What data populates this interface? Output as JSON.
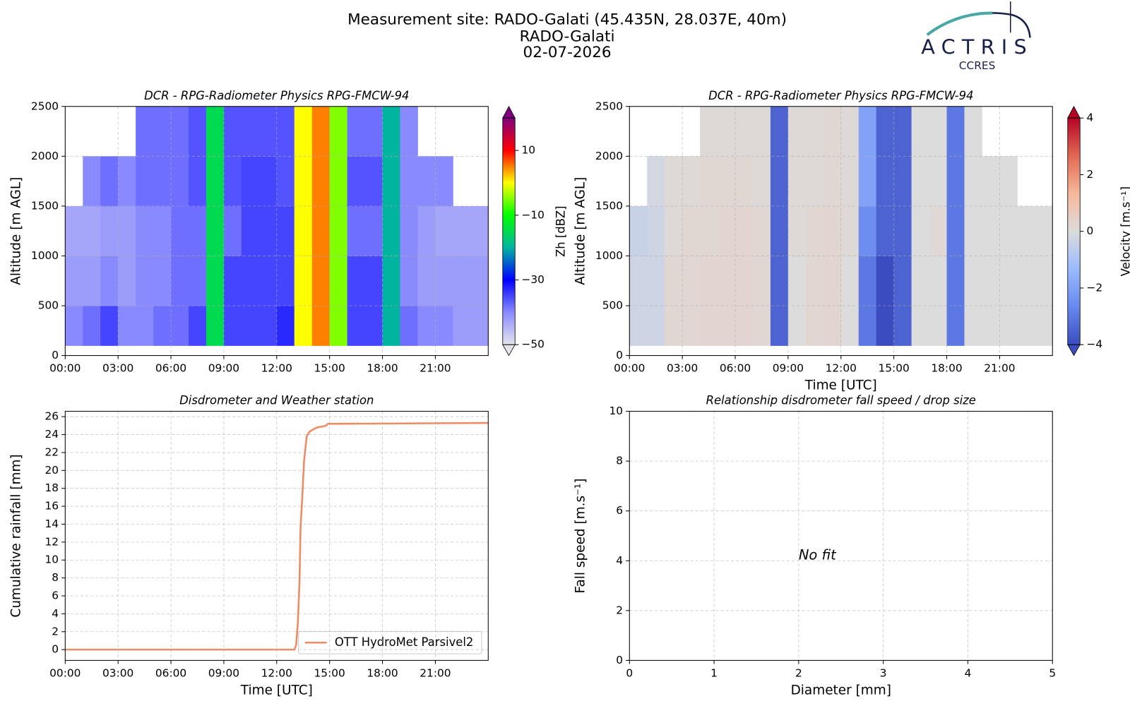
{
  "title_lines": [
    "Measurement site: RADO-Galati (45.435N, 28.037E, 40m)",
    "RADO-Galati",
    "02-07-2026"
  ],
  "logo": {
    "name": "ACTRIS",
    "subtitle": "CCRES"
  },
  "chart_data": [
    {
      "type": "heatmap",
      "title": "DCR - RPG-Radiometer Physics RPG-FMCW-94",
      "ylabel": "Altitude [m AGL]",
      "colorbar_label": "Zh [dBZ]",
      "xlim": [
        0,
        24
      ],
      "xticks": [
        {
          "value": 0,
          "label": "00:00"
        },
        {
          "value": 3,
          "label": "03:00"
        },
        {
          "value": 6,
          "label": "06:00"
        },
        {
          "value": 9,
          "label": "09:00"
        },
        {
          "value": 12,
          "label": "12:00"
        },
        {
          "value": 15,
          "label": "15:00"
        },
        {
          "value": 18,
          "label": "18:00"
        },
        {
          "value": 21,
          "label": "21:00"
        }
      ],
      "ylim": [
        0,
        2500
      ],
      "yticks": [
        0,
        500,
        1000,
        1500,
        2000,
        2500
      ],
      "grid": true,
      "x_bins": [
        0,
        1,
        2,
        3,
        4,
        5,
        6,
        7,
        8,
        9,
        10,
        11,
        12,
        13,
        14,
        15,
        16,
        17,
        18,
        19,
        20,
        21,
        22,
        23,
        24
      ],
      "y_bins": [
        100,
        500,
        1000,
        1500,
        2000,
        2500
      ],
      "z": [
        [
          -40,
          -38,
          -35,
          -40,
          -40,
          -38,
          -38,
          -35,
          -15,
          -35,
          -35,
          -35,
          -33,
          0,
          5,
          -5,
          -35,
          -35,
          -20,
          -38,
          -40,
          -40,
          -42,
          -42
        ],
        [
          -42,
          -42,
          -40,
          -42,
          -40,
          -40,
          -38,
          -38,
          -15,
          -35,
          -35,
          -35,
          -35,
          0,
          5,
          -5,
          -35,
          -35,
          -20,
          -40,
          -42,
          -42,
          -42,
          -42
        ],
        [
          -43,
          -43,
          -42,
          -42,
          -40,
          -40,
          -38,
          -38,
          -15,
          -38,
          -35,
          -35,
          -35,
          0,
          5,
          -5,
          -38,
          -38,
          -20,
          -40,
          -42,
          -43,
          -43,
          -43
        ],
        [
          null,
          -40,
          -38,
          -40,
          -38,
          -38,
          -38,
          -36,
          -15,
          -36,
          -35,
          -35,
          -36,
          0,
          5,
          -5,
          -36,
          -36,
          -20,
          -40,
          -40,
          -40,
          null,
          null
        ],
        [
          null,
          null,
          null,
          null,
          -38,
          -38,
          -38,
          -36,
          -15,
          -36,
          -36,
          -36,
          -36,
          0,
          5,
          -5,
          -38,
          -38,
          -20,
          -40,
          null,
          null,
          null,
          null
        ]
      ],
      "zlim": [
        -50,
        20
      ],
      "zticks": [
        {
          "value": -50,
          "label": "−50"
        },
        {
          "value": -30,
          "label": "−30"
        },
        {
          "value": -10,
          "label": "−10"
        },
        10
      ],
      "colormap": [
        "#e4e4ec",
        "#8a8aff",
        "#0000ff",
        "#00b4a0",
        "#00ff00",
        "#ffff00",
        "#ff0000",
        "#7f007f"
      ]
    },
    {
      "type": "heatmap",
      "title": "DCR - RPG-Radiometer Physics RPG-FMCW-94",
      "xlabel": "Time [UTC]",
      "ylabel": "Altitude [m AGL]",
      "colorbar_label": "Velocity [m.s⁻¹]",
      "xlim": [
        0,
        24
      ],
      "xticks": [
        {
          "value": 0,
          "label": "00:00"
        },
        {
          "value": 3,
          "label": "03:00"
        },
        {
          "value": 6,
          "label": "06:00"
        },
        {
          "value": 9,
          "label": "09:00"
        },
        {
          "value": 12,
          "label": "12:00"
        },
        {
          "value": 15,
          "label": "15:00"
        },
        {
          "value": 18,
          "label": "18:00"
        },
        {
          "value": 21,
          "label": "21:00"
        }
      ],
      "ylim": [
        0,
        2500
      ],
      "yticks": [
        0,
        500,
        1000,
        1500,
        2000,
        2500
      ],
      "grid": true,
      "x_bins": [
        0,
        1,
        2,
        3,
        4,
        5,
        6,
        7,
        8,
        9,
        10,
        11,
        12,
        13,
        14,
        15,
        16,
        17,
        18,
        19,
        20,
        21,
        22,
        23,
        24
      ],
      "y_bins": [
        100,
        500,
        1000,
        1500,
        2000,
        2500
      ],
      "z": [
        [
          -0.3,
          -0.3,
          0.2,
          0.2,
          0.3,
          0.3,
          0.3,
          0.2,
          -3.5,
          0,
          0.2,
          0.3,
          0,
          -3,
          -4,
          -3.5,
          0,
          0,
          -3,
          0,
          0,
          0,
          0,
          0
        ],
        [
          -0.3,
          -0.3,
          0.2,
          0.2,
          0.3,
          0.3,
          0.3,
          0.2,
          -3.5,
          0,
          0.2,
          0.3,
          0,
          -3,
          -4,
          -3.5,
          0,
          0,
          -3,
          0,
          0,
          0,
          0,
          0
        ],
        [
          -0.4,
          -0.3,
          0.1,
          0.2,
          0.2,
          0.3,
          0.3,
          0.2,
          -3.5,
          0.1,
          0.2,
          0.3,
          0.1,
          -2.5,
          -3.5,
          -3.5,
          0,
          0.1,
          -3,
          0,
          0,
          0,
          0,
          0
        ],
        [
          null,
          -0.2,
          0.1,
          0.1,
          0.2,
          0.2,
          0.2,
          0.1,
          -3.5,
          0.1,
          0.1,
          0.2,
          0.1,
          -2,
          -3.5,
          -3.5,
          0,
          0,
          -3,
          0,
          0,
          0,
          null,
          null
        ],
        [
          null,
          null,
          null,
          null,
          0.1,
          0.1,
          0.1,
          0.1,
          -3.5,
          0.1,
          0.1,
          0.2,
          0.1,
          -2,
          -3.5,
          -3.5,
          0,
          0,
          -3,
          0,
          null,
          null,
          null,
          null
        ]
      ],
      "zlim": [
        -4,
        4
      ],
      "zticks": [
        {
          "value": -4,
          "label": "−4"
        },
        {
          "value": -2,
          "label": "−2"
        },
        0,
        2,
        4
      ],
      "colormap": [
        "#3b4cc0",
        "#6788ee",
        "#9abbff",
        "#dcdcdc",
        "#f7b89c",
        "#e26952",
        "#b40426"
      ]
    },
    {
      "type": "line",
      "title": "Disdrometer and Weather station",
      "xlabel": "Time [UTC]",
      "ylabel": "Cumulative rainfall [mm]",
      "xlim": [
        0,
        24
      ],
      "xticks": [
        {
          "value": 0,
          "label": "00:00"
        },
        {
          "value": 3,
          "label": "03:00"
        },
        {
          "value": 6,
          "label": "06:00"
        },
        {
          "value": 9,
          "label": "09:00"
        },
        {
          "value": 12,
          "label": "12:00"
        },
        {
          "value": 15,
          "label": "15:00"
        },
        {
          "value": 18,
          "label": "18:00"
        },
        {
          "value": 21,
          "label": "21:00"
        }
      ],
      "ylim": [
        -1.2,
        26.6
      ],
      "yticks": [
        0,
        2,
        4,
        6,
        8,
        10,
        12,
        14,
        16,
        18,
        20,
        22,
        24,
        26
      ],
      "grid": true,
      "legend": "lower right",
      "x": [
        0,
        13.0,
        13.1,
        13.2,
        13.3,
        13.35,
        13.45,
        13.55,
        13.7,
        13.85,
        14.0,
        14.3,
        14.6,
        14.8,
        14.9,
        15.0,
        24
      ],
      "series": [
        {
          "name": "OTT HydroMet Parsivel2",
          "color": "#ef8a62",
          "values": [
            0,
            0,
            0.5,
            3,
            8,
            13.5,
            17,
            21,
            23.8,
            24.3,
            24.5,
            24.8,
            24.9,
            25.0,
            25.2,
            25.2,
            25.3
          ]
        }
      ]
    },
    {
      "type": "scatter",
      "title": "Relationship disdrometer fall speed / drop size",
      "xlabel": "Diameter [mm]",
      "ylabel": "Fall speed [m.s⁻¹]",
      "xlim": [
        0,
        5
      ],
      "xticks": [
        0,
        1,
        2,
        3,
        4,
        5
      ],
      "ylim": [
        0,
        10
      ],
      "yticks": [
        0,
        2,
        4,
        6,
        8,
        10
      ],
      "grid": true,
      "annotation": "No fit"
    }
  ]
}
